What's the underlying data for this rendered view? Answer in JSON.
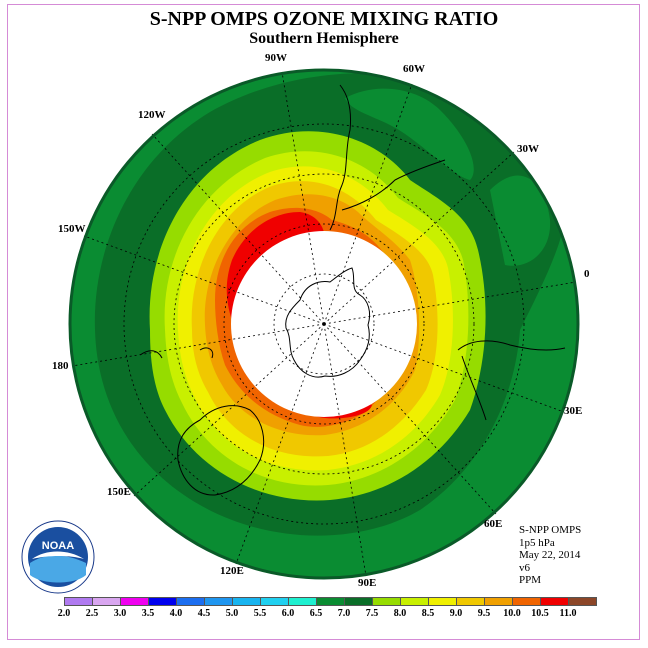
{
  "title": "S-NPP OMPS OZONE MIXING RATIO",
  "subtitle": "Southern Hemisphere",
  "longitude_labels": [
    "90W",
    "60W",
    "30W",
    "0",
    "30E",
    "60E",
    "90E",
    "120E",
    "150E",
    "180",
    "150W",
    "120W"
  ],
  "info": {
    "instrument": "S-NPP OMPS",
    "level": "1p5 hPa",
    "date": "May 22, 2014",
    "version": "v6",
    "units": "PPM"
  },
  "logo_text": "NOAA",
  "colorbar": {
    "ticks": [
      "2.0",
      "2.5",
      "3.0",
      "3.5",
      "4.0",
      "4.5",
      "5.0",
      "5.5",
      "6.0",
      "6.5",
      "7.0",
      "7.5",
      "8.0",
      "8.5",
      "9.0",
      "9.5",
      "10.0",
      "10.5",
      "11.0"
    ],
    "colors": [
      "#b07af0",
      "#d9a6f0",
      "#f000f0",
      "#0000ee",
      "#1c6ef0",
      "#1f96f0",
      "#18b4f0",
      "#20d0f0",
      "#1ef0d0",
      "#0a8c32",
      "#0a6e28",
      "#96dc00",
      "#c8f000",
      "#f0f000",
      "#f0c800",
      "#f0a000",
      "#f06400",
      "#f00000",
      "#8c4628"
    ]
  }
}
